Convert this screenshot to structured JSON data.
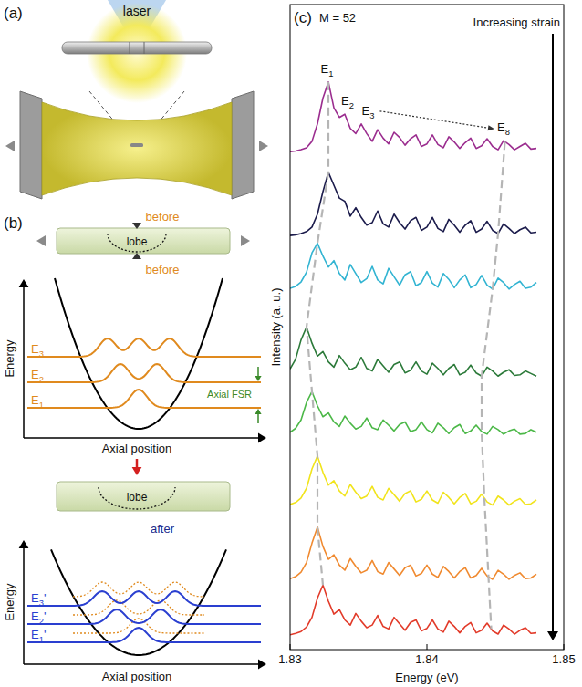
{
  "panel_letters": [
    "(a)",
    "(b)",
    "(c)"
  ],
  "panel_a": {
    "beam_label": "laser"
  },
  "panel_b": {
    "before": {
      "header": "before",
      "caption": "before",
      "tube_label": "lobe",
      "y_label": "Energy",
      "x_label": "Axial position",
      "levels": [
        "E1",
        "E2",
        "E3"
      ],
      "spacing_label": "Axial FSR"
    },
    "after": {
      "caption": "after",
      "tube_label": "lobe",
      "y_label": "Energy",
      "x_label": "Axial position",
      "levels": [
        "E1'",
        "E2'",
        "E3'"
      ]
    }
  },
  "chart_data": {
    "type": "line",
    "x_label": "Energy (eV)",
    "y_label": "Intensity (a. u.)",
    "annotations": [
      {
        "text": "M = 52"
      },
      {
        "text": "Increasing strain"
      }
    ],
    "mode_labels": [
      {
        "text": "E1",
        "x": 1.8327
      },
      {
        "text": "E2",
        "x": 1.8342
      },
      {
        "text": "E3",
        "x": 1.8357
      },
      {
        "text": "E8",
        "x": 1.8456
      }
    ],
    "mode_tracks": [
      [
        1.8328,
        1.8328,
        1.832,
        1.8312,
        1.8316,
        1.832,
        1.832,
        1.8324
      ],
      [
        1.8457,
        1.8452,
        1.8448,
        1.844,
        1.844,
        1.8442,
        1.8445,
        1.8447
      ]
    ],
    "xlim": [
      1.83,
      1.85
    ],
    "xticks": [
      1.83,
      1.84,
      1.85
    ],
    "ylim": [
      0,
      100
    ],
    "yticks": [],
    "tick_labels": "x",
    "x": [
      1.83,
      1.8304,
      1.8308,
      1.8312,
      1.8316,
      1.832,
      1.8324,
      1.8328,
      1.8332,
      1.8336,
      1.834,
      1.8344,
      1.8348,
      1.8352,
      1.8356,
      1.836,
      1.8364,
      1.8368,
      1.8372,
      1.8376,
      1.838,
      1.8384,
      1.8388,
      1.8392,
      1.8396,
      1.84,
      1.8404,
      1.8408,
      1.8412,
      1.8416,
      1.842,
      1.8424,
      1.8428,
      1.8432,
      1.8436,
      1.844,
      1.8444,
      1.8448,
      1.8452,
      1.8456,
      1.846,
      1.8464,
      1.8468,
      1.8472,
      1.8476,
      1.848
    ],
    "series": [
      {
        "color": "#9b2d8f",
        "values": [
          77.2,
          77.3,
          77.5,
          77.8,
          78.8,
          81.5,
          85.5,
          88.0,
          84.0,
          82.5,
          83.0,
          80.8,
          80.0,
          81.5,
          80.0,
          78.8,
          80.6,
          79.3,
          78.4,
          80.2,
          79.4,
          78.2,
          79.2,
          79.8,
          78.0,
          78.4,
          79.8,
          78.3,
          77.8,
          79.5,
          78.7,
          77.7,
          78.6,
          79.3,
          77.7,
          78.1,
          79.2,
          78.0,
          77.5,
          78.9,
          78.3,
          77.5,
          78.0,
          78.5,
          77.6,
          77.7
        ]
      },
      {
        "color": "#1c1c4c",
        "values": [
          64.2,
          64.3,
          64.5,
          64.8,
          65.5,
          67.5,
          71.0,
          74.0,
          72.0,
          70.0,
          69.5,
          67.2,
          68.5,
          67.0,
          65.8,
          66.2,
          68.0,
          66.0,
          65.5,
          67.5,
          66.2,
          65.2,
          66.5,
          67.0,
          65.0,
          65.5,
          67.0,
          65.3,
          64.8,
          66.7,
          65.8,
          64.7,
          65.8,
          66.5,
          64.7,
          65.2,
          66.4,
          65.0,
          64.5,
          66.0,
          65.3,
          64.5,
          65.1,
          65.5,
          64.6,
          64.7
        ]
      },
      {
        "color": "#32b4d2",
        "values": [
          56.0,
          56.3,
          57.0,
          58.5,
          61.5,
          63.0,
          61.0,
          59.3,
          60.3,
          58.3,
          57.3,
          59.7,
          58.3,
          56.9,
          57.5,
          59.4,
          57.3,
          56.7,
          59.1,
          57.8,
          56.5,
          58.1,
          58.6,
          56.4,
          56.9,
          58.6,
          56.8,
          56.2,
          58.3,
          57.4,
          56.1,
          57.3,
          58.1,
          56.1,
          56.6,
          58.0,
          56.5,
          55.9,
          57.6,
          56.9,
          55.9,
          56.6,
          57.1,
          56.0,
          56.2,
          56.9
        ]
      },
      {
        "color": "#2c7a3a",
        "values": [
          43.5,
          45.0,
          48.0,
          50.0,
          47.5,
          45.5,
          46.2,
          44.6,
          43.8,
          45.6,
          44.4,
          43.4,
          43.8,
          45.3,
          43.6,
          43.2,
          45.0,
          44.0,
          43.0,
          44.2,
          44.6,
          42.9,
          43.3,
          44.6,
          43.2,
          42.7,
          44.4,
          43.6,
          42.6,
          43.6,
          44.2,
          42.6,
          43.0,
          44.1,
          42.9,
          42.4,
          43.8,
          43.2,
          42.4,
          43.0,
          43.4,
          42.5,
          42.6,
          43.2,
          42.8,
          42.4
        ]
      },
      {
        "color": "#4cb848",
        "values": [
          33.7,
          34.3,
          35.6,
          38.3,
          40.0,
          37.8,
          36.1,
          36.7,
          35.3,
          34.6,
          36.2,
          35.1,
          34.2,
          34.6,
          35.9,
          34.4,
          34.1,
          35.6,
          34.8,
          33.9,
          34.9,
          35.3,
          33.8,
          34.1,
          35.3,
          34.1,
          33.6,
          35.1,
          34.4,
          33.5,
          34.4,
          34.9,
          33.5,
          33.9,
          34.8,
          33.8,
          33.4,
          34.6,
          34.1,
          33.4,
          33.9,
          34.2,
          33.4,
          33.5,
          34.1,
          33.7
        ]
      },
      {
        "color": "#f1e41c",
        "values": [
          22.5,
          22.8,
          23.5,
          25.0,
          28.0,
          30.0,
          27.5,
          25.5,
          26.2,
          24.6,
          23.8,
          25.6,
          24.4,
          23.4,
          23.8,
          25.3,
          23.6,
          23.2,
          25.0,
          24.0,
          23.0,
          24.2,
          24.6,
          22.9,
          23.3,
          24.6,
          23.2,
          22.7,
          24.4,
          23.6,
          22.6,
          23.6,
          24.2,
          22.6,
          23.0,
          24.1,
          22.9,
          22.4,
          23.8,
          23.2,
          22.4,
          23.0,
          23.4,
          22.5,
          22.6,
          23.2
        ]
      },
      {
        "color": "#f08a30",
        "values": [
          11.0,
          11.3,
          12.0,
          13.5,
          16.5,
          19.0,
          16.0,
          14.0,
          14.7,
          13.1,
          12.3,
          14.1,
          12.9,
          11.9,
          12.3,
          13.8,
          12.1,
          11.7,
          13.5,
          12.5,
          11.5,
          12.7,
          13.1,
          11.4,
          11.8,
          13.1,
          11.7,
          11.2,
          12.9,
          12.1,
          11.1,
          12.1,
          12.7,
          11.1,
          11.5,
          12.6,
          11.4,
          10.9,
          12.3,
          11.7,
          10.9,
          11.5,
          11.9,
          11.0,
          11.1,
          11.7
        ]
      },
      {
        "color": "#e23b2a",
        "values": [
          2.3,
          2.5,
          2.8,
          3.5,
          5.0,
          8.0,
          10.0,
          7.5,
          5.5,
          6.2,
          4.6,
          3.8,
          5.6,
          4.4,
          3.4,
          3.8,
          5.3,
          3.6,
          3.2,
          5.0,
          4.0,
          3.0,
          4.2,
          4.6,
          2.9,
          3.3,
          4.6,
          3.2,
          2.7,
          4.4,
          3.6,
          2.6,
          3.6,
          4.2,
          2.6,
          3.0,
          4.1,
          2.9,
          2.4,
          3.8,
          3.2,
          2.4,
          3.0,
          3.4,
          2.5,
          2.6
        ]
      }
    ]
  }
}
